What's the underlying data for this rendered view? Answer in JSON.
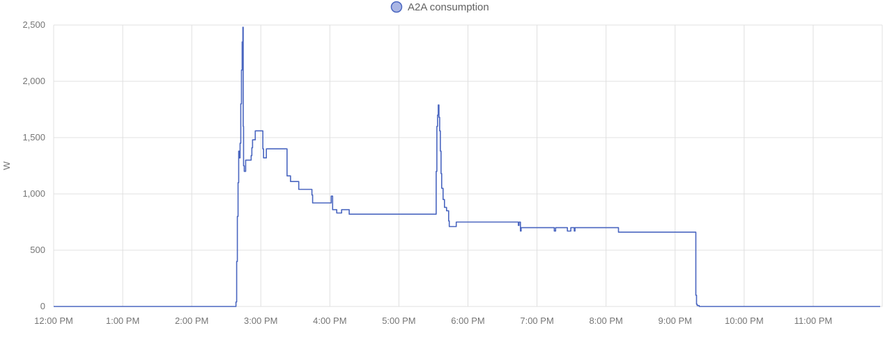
{
  "chart_data": {
    "type": "line",
    "ylabel": "W",
    "ylim": [
      0,
      2500
    ],
    "yticks": [
      0,
      500,
      1000,
      1500,
      2000,
      2500
    ],
    "ytick_labels": [
      "0",
      "500",
      "1,000",
      "1,500",
      "2,000",
      "2,500"
    ],
    "xlim": [
      12,
      24
    ],
    "xticks": [
      12,
      13,
      14,
      15,
      16,
      17,
      18,
      19,
      20,
      21,
      22,
      23
    ],
    "xtick_labels": [
      "12:00 PM",
      "1:00 PM",
      "2:00 PM",
      "3:00 PM",
      "4:00 PM",
      "5:00 PM",
      "6:00 PM",
      "7:00 PM",
      "8:00 PM",
      "9:00 PM",
      "10:00 PM",
      "11:00 PM"
    ],
    "grid": true,
    "legend_position": "top-center",
    "series": [
      {
        "name": "A2A consumption",
        "color": "#4a66c0",
        "legend_fill": "#aab6e4",
        "step": true,
        "points": [
          [
            12.0,
            0
          ],
          [
            14.63,
            0
          ],
          [
            14.64,
            40
          ],
          [
            14.65,
            400
          ],
          [
            14.66,
            800
          ],
          [
            14.67,
            1100
          ],
          [
            14.68,
            1380
          ],
          [
            14.69,
            1320
          ],
          [
            14.7,
            1450
          ],
          [
            14.71,
            1800
          ],
          [
            14.72,
            2100
          ],
          [
            14.73,
            2350
          ],
          [
            14.74,
            2480
          ],
          [
            14.745,
            1600
          ],
          [
            14.75,
            1250
          ],
          [
            14.76,
            1200
          ],
          [
            14.78,
            1300
          ],
          [
            14.85,
            1300
          ],
          [
            14.86,
            1340
          ],
          [
            14.87,
            1410
          ],
          [
            14.88,
            1480
          ],
          [
            14.92,
            1560
          ],
          [
            15.02,
            1560
          ],
          [
            15.03,
            1400
          ],
          [
            15.04,
            1320
          ],
          [
            15.08,
            1400
          ],
          [
            15.37,
            1400
          ],
          [
            15.38,
            1160
          ],
          [
            15.43,
            1110
          ],
          [
            15.54,
            1110
          ],
          [
            15.55,
            1040
          ],
          [
            15.73,
            1040
          ],
          [
            15.74,
            990
          ],
          [
            15.75,
            920
          ],
          [
            16.01,
            920
          ],
          [
            16.02,
            980
          ],
          [
            16.04,
            860
          ],
          [
            16.1,
            830
          ],
          [
            16.17,
            860
          ],
          [
            16.27,
            860
          ],
          [
            16.28,
            820
          ],
          [
            17.53,
            820
          ],
          [
            17.54,
            1200
          ],
          [
            17.55,
            1600
          ],
          [
            17.56,
            1700
          ],
          [
            17.57,
            1790
          ],
          [
            17.58,
            1680
          ],
          [
            17.59,
            1560
          ],
          [
            17.6,
            1380
          ],
          [
            17.61,
            1180
          ],
          [
            17.62,
            1050
          ],
          [
            17.64,
            950
          ],
          [
            17.66,
            880
          ],
          [
            17.69,
            850
          ],
          [
            17.72,
            760
          ],
          [
            17.73,
            710
          ],
          [
            17.82,
            710
          ],
          [
            17.83,
            750
          ],
          [
            18.72,
            750
          ],
          [
            18.73,
            720
          ],
          [
            18.74,
            750
          ],
          [
            18.76,
            670
          ],
          [
            18.77,
            700
          ],
          [
            19.24,
            700
          ],
          [
            19.25,
            670
          ],
          [
            19.27,
            700
          ],
          [
            19.43,
            700
          ],
          [
            19.44,
            670
          ],
          [
            19.49,
            700
          ],
          [
            19.53,
            700
          ],
          [
            19.54,
            670
          ],
          [
            19.55,
            700
          ],
          [
            20.17,
            700
          ],
          [
            20.18,
            660
          ],
          [
            21.29,
            660
          ],
          [
            21.3,
            100
          ],
          [
            21.31,
            20
          ],
          [
            21.32,
            8
          ],
          [
            21.35,
            0
          ],
          [
            23.97,
            0
          ]
        ]
      }
    ]
  }
}
